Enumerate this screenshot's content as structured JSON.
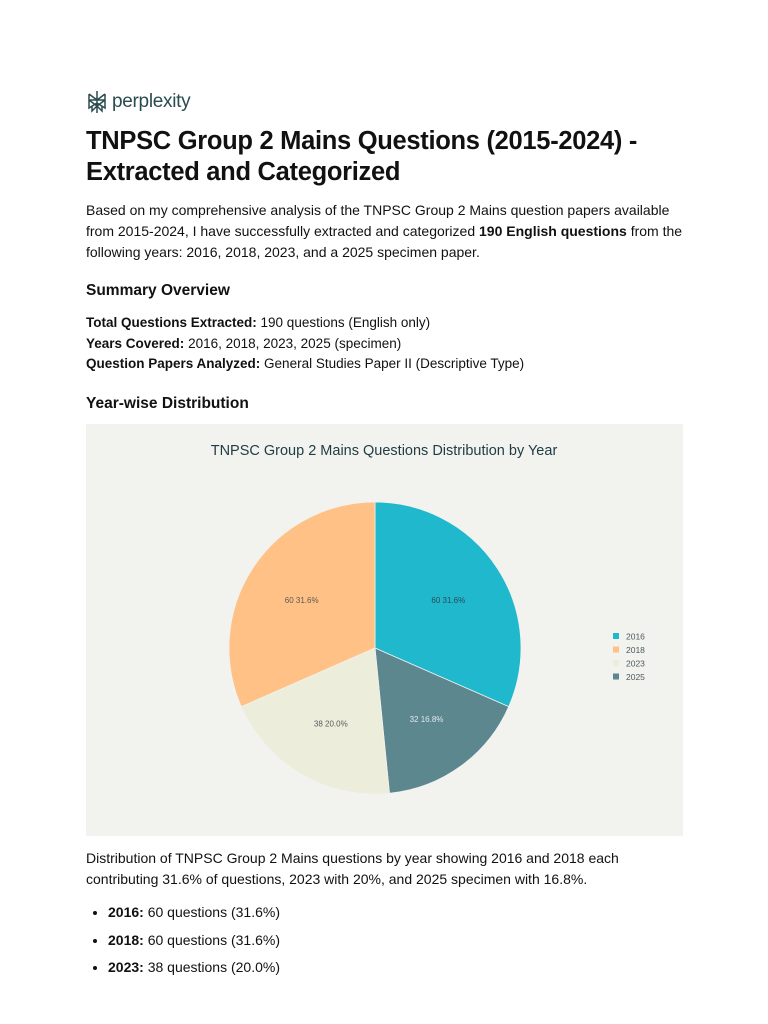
{
  "brand": {
    "name": "perplexity",
    "icon": "perplexity-logo-icon"
  },
  "title": "TNPSC Group 2 Mains Questions (2015-2024) - Extracted and Categorized",
  "intro": {
    "before": "Based on my comprehensive analysis of the TNPSC Group 2 Mains question papers available from 2015-2024, I have successfully extracted and categorized ",
    "bold": "190 English questions",
    "after": " from the following years: 2016, 2018, 2023, and a 2025 specimen paper."
  },
  "summary": {
    "heading": "Summary Overview",
    "items": [
      {
        "label": "Total Questions Extracted:",
        "value": " 190 questions (English only)"
      },
      {
        "label": "Years Covered:",
        "value": " 2016, 2018, 2023, 2025 (specimen)"
      },
      {
        "label": "Question Papers Analyzed:",
        "value": " General Studies Paper II (Descriptive Type)"
      }
    ]
  },
  "distribution_heading": "Year-wise Distribution",
  "chart_data": {
    "type": "pie",
    "title": "TNPSC Group 2 Mains Questions Distribution by Year",
    "categories": [
      "2016",
      "2018",
      "2023",
      "2025"
    ],
    "values": [
      60,
      60,
      38,
      32
    ],
    "percentages": [
      "31.6%",
      "31.6%",
      "20.0%",
      "16.8%"
    ],
    "slice_labels": [
      "60 31.6%",
      "60 31.6%",
      "38 20.0%",
      "32 16.8%"
    ],
    "colors": [
      "#1fb8cd",
      "#ffc185",
      "#eceddb",
      "#5d878f"
    ],
    "start_angle": "12 o'clock",
    "direction": "clockwise",
    "slice_order_clockwise": [
      "2016",
      "2025",
      "2023",
      "2018"
    ],
    "legend_position": "right",
    "background": "#f2f2ee"
  },
  "caption": "Distribution of TNPSC Group 2 Mains questions by year showing 2016 and 2018 each contributing 31.6% of questions, 2023 with 20%, and 2025 specimen with 16.8%.",
  "year_list": [
    {
      "year": "2016:",
      "text": " 60 questions (31.6%)"
    },
    {
      "year": "2018:",
      "text": " 60 questions (31.6%)"
    },
    {
      "year": "2023:",
      "text": " 38 questions (20.0%)"
    }
  ]
}
